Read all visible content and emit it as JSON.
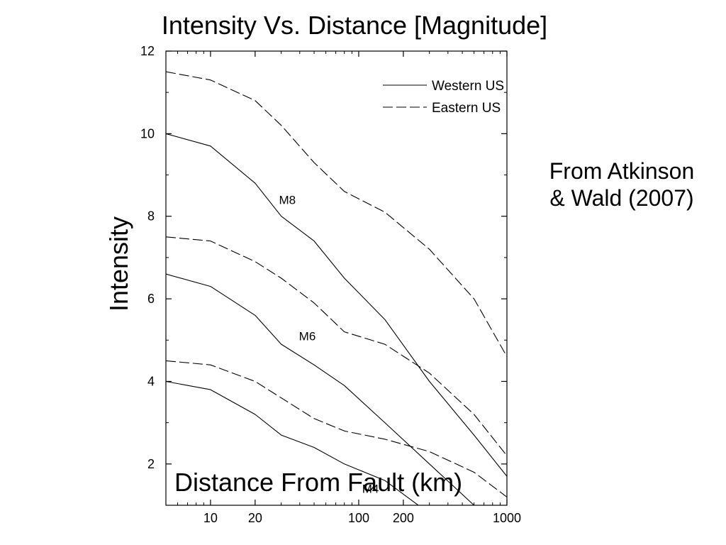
{
  "slide": {
    "title": "Intensity Vs. Distance [Magnitude]",
    "source_line1": "From Atkinson",
    "source_line2": "& Wald (2007)",
    "xlabel_overlay": "Distance From Fault (km)"
  },
  "chart_data": {
    "type": "line",
    "title": "Intensity Vs. Distance [Magnitude]",
    "xlabel": "Distance From Fault (km)",
    "ylabel": "Intensity",
    "x_scale": "log",
    "xlim": [
      5,
      1000
    ],
    "ylim": [
      1,
      12
    ],
    "x_tick_labels": [
      10,
      20,
      100,
      200,
      1000
    ],
    "x_minor_ticks": [
      5,
      6,
      7,
      8,
      9,
      30,
      40,
      50,
      60,
      70,
      80,
      90,
      300,
      400,
      500,
      600,
      700,
      800,
      900
    ],
    "y_tick_labels": [
      2,
      4,
      6,
      8,
      10,
      12
    ],
    "y_minor_ticks": [
      1,
      3,
      5,
      7,
      9,
      11
    ],
    "grid": false,
    "legend_position": "top-right",
    "legend": [
      {
        "label": "Western US",
        "style": "solid"
      },
      {
        "label": "Eastern US",
        "style": "dashed"
      }
    ],
    "annotations": [
      {
        "text": "M8",
        "x": 33,
        "y": 8.3
      },
      {
        "text": "M6",
        "x": 45,
        "y": 5.0
      },
      {
        "text": "M4",
        "x": 120,
        "y": 1.3
      }
    ],
    "series": [
      {
        "name": "Western US",
        "magnitude": "M8",
        "style": "solid",
        "x": [
          5,
          10,
          20,
          30,
          50,
          80,
          150,
          300,
          600,
          1000
        ],
        "y": [
          10.0,
          9.7,
          8.8,
          8.0,
          7.4,
          6.5,
          5.5,
          4.0,
          2.7,
          1.7
        ]
      },
      {
        "name": "Eastern US",
        "magnitude": "M8",
        "style": "dashed",
        "x": [
          5,
          10,
          20,
          30,
          50,
          80,
          150,
          300,
          600,
          1000
        ],
        "y": [
          11.5,
          11.3,
          10.8,
          10.2,
          9.3,
          8.6,
          8.1,
          7.2,
          6.0,
          4.6
        ]
      },
      {
        "name": "Western US",
        "magnitude": "M6",
        "style": "solid",
        "x": [
          5,
          10,
          20,
          30,
          50,
          80,
          150,
          300,
          600,
          1000
        ],
        "y": [
          6.6,
          6.3,
          5.6,
          4.9,
          4.4,
          3.9,
          3.0,
          2.0,
          1.0,
          0.3
        ]
      },
      {
        "name": "Eastern US",
        "magnitude": "M6",
        "style": "dashed",
        "x": [
          5,
          10,
          20,
          30,
          50,
          80,
          150,
          300,
          600,
          1000
        ],
        "y": [
          7.5,
          7.4,
          6.9,
          6.5,
          5.9,
          5.2,
          4.9,
          4.2,
          3.2,
          2.2
        ]
      },
      {
        "name": "Western US",
        "magnitude": "M4",
        "style": "solid",
        "x": [
          5,
          10,
          20,
          30,
          50,
          80,
          150,
          300,
          600,
          1000
        ],
        "y": [
          4.0,
          3.8,
          3.2,
          2.7,
          2.4,
          2.0,
          1.6,
          0.8,
          0.0,
          -0.6
        ]
      },
      {
        "name": "Eastern US",
        "magnitude": "M4",
        "style": "dashed",
        "x": [
          5,
          10,
          20,
          30,
          50,
          80,
          150,
          300,
          600,
          1000
        ],
        "y": [
          4.5,
          4.4,
          4.0,
          3.6,
          3.1,
          2.8,
          2.6,
          2.3,
          1.8,
          1.2
        ]
      }
    ]
  }
}
